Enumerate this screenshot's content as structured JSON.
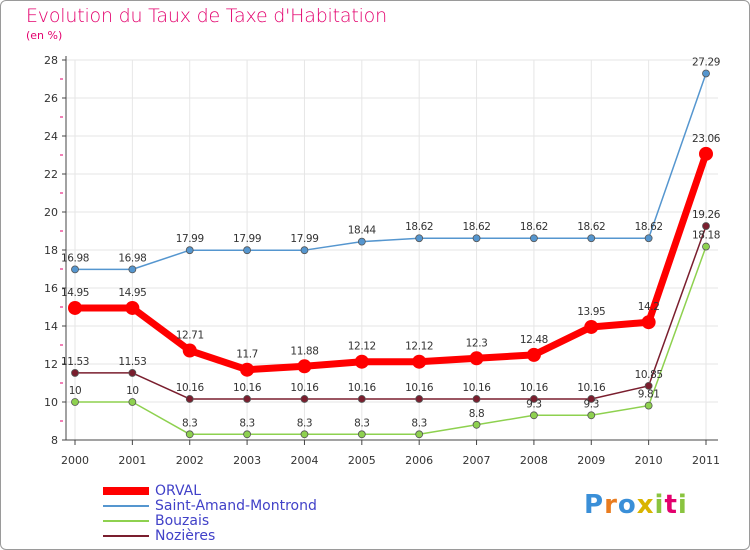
{
  "title": "Evolution du Taux de Taxe d'Habitation",
  "subtitle": "(en %)",
  "logo": {
    "text": "Proxiti"
  },
  "chart_data": {
    "type": "line",
    "x": [
      "2000",
      "2001",
      "2002",
      "2003",
      "2004",
      "2005",
      "2006",
      "2007",
      "2008",
      "2009",
      "2010",
      "2011"
    ],
    "ylim": [
      8,
      28
    ],
    "yticks": [
      8,
      10,
      12,
      14,
      16,
      18,
      20,
      22,
      24,
      26,
      28
    ],
    "grid": true,
    "legend_position": "bottom-left",
    "series": [
      {
        "name": "ORVAL",
        "color": "#ff0000",
        "width": 7,
        "radius": 7,
        "values": [
          14.95,
          14.95,
          12.71,
          11.7,
          11.88,
          12.12,
          12.12,
          12.3,
          12.48,
          13.95,
          14.2,
          23.06
        ],
        "labels": [
          "14.95",
          "14.95",
          "12.71",
          "11.7",
          "11.88",
          "12.12",
          "12.12",
          "12.3",
          "12.48",
          "13.95",
          "14.2",
          "23.06"
        ]
      },
      {
        "name": "Saint-Amand-Montrond",
        "color": "#5596cf",
        "width": 1.5,
        "radius": 3.5,
        "values": [
          16.98,
          16.98,
          17.99,
          17.99,
          17.99,
          18.44,
          18.62,
          18.62,
          18.62,
          18.62,
          18.62,
          27.29
        ],
        "labels": [
          "16.98",
          "16.98",
          "17.99",
          "17.99",
          "17.99",
          "18.44",
          "18.62",
          "18.62",
          "18.62",
          "18.62",
          "18.62",
          "27.29"
        ]
      },
      {
        "name": "Bouzais",
        "color": "#8ed14f",
        "width": 1.5,
        "radius": 3.5,
        "values": [
          10,
          10,
          8.3,
          8.3,
          8.3,
          8.3,
          8.3,
          8.8,
          9.3,
          9.3,
          9.81,
          18.18
        ],
        "labels": [
          "10",
          "10",
          "8.3",
          "8.3",
          "8.3",
          "8.3",
          "8.3",
          "8.8",
          "9.3",
          "9.3",
          "9.81",
          "18.18"
        ]
      },
      {
        "name": "Nozières",
        "color": "#7a1e2e",
        "width": 1.5,
        "radius": 3.5,
        "values": [
          11.53,
          11.53,
          10.16,
          10.16,
          10.16,
          10.16,
          10.16,
          10.16,
          10.16,
          10.16,
          10.85,
          19.26
        ],
        "labels": [
          "11.53",
          "11.53",
          "10.16",
          "10.16",
          "10.16",
          "10.16",
          "10.16",
          "10.16",
          "10.16",
          "10.16",
          "10.85",
          "19.26"
        ]
      }
    ]
  }
}
